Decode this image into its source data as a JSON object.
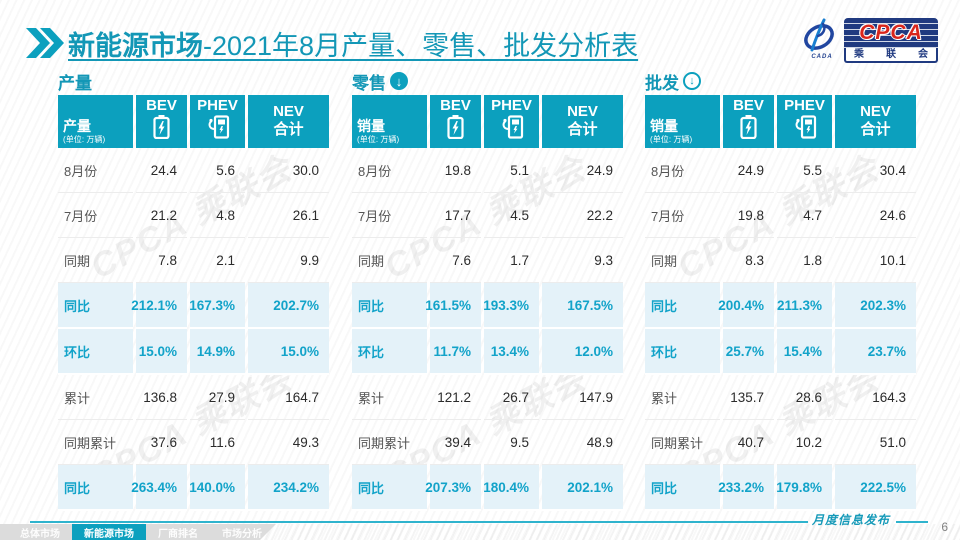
{
  "slide": {
    "title_bold": "新能源市场",
    "title_rest": "-2021年8月产量、零售、批发分析表",
    "accent_color": "#0CA0BE",
    "highlight_row_bg": "#E4F2F9",
    "logos": {
      "left_caption": "CADA",
      "badge_text": "CPCA",
      "badge_caption_chars": [
        "乘",
        "联",
        "会"
      ]
    }
  },
  "watermark": "CPCA 乘联会",
  "tables": [
    {
      "section_title": "产量",
      "arrow": "none",
      "header": {
        "measure": "产量",
        "unit": "(单位: 万辆)",
        "bev": "BEV",
        "phev": "PHEV",
        "nev_line1": "NEV",
        "nev_line2": "合计"
      },
      "rows": [
        {
          "label": "8月份",
          "values": [
            "24.4",
            "5.6",
            "30.0"
          ],
          "highlight": false
        },
        {
          "label": "7月份",
          "values": [
            "21.2",
            "4.8",
            "26.1"
          ],
          "highlight": false
        },
        {
          "label": "同期",
          "values": [
            "7.8",
            "2.1",
            "9.9"
          ],
          "highlight": false
        },
        {
          "label": "同比",
          "values": [
            "212.1%",
            "167.3%",
            "202.7%"
          ],
          "highlight": true
        },
        {
          "label": "环比",
          "values": [
            "15.0%",
            "14.9%",
            "15.0%"
          ],
          "highlight": true
        },
        {
          "label": "累计",
          "values": [
            "136.8",
            "27.9",
            "164.7"
          ],
          "highlight": false
        },
        {
          "label": "同期累计",
          "values": [
            "37.6",
            "11.6",
            "49.3"
          ],
          "highlight": false
        },
        {
          "label": "同比",
          "values": [
            "263.4%",
            "140.0%",
            "234.2%"
          ],
          "highlight": true
        }
      ]
    },
    {
      "section_title": "零售",
      "arrow": "solid",
      "header": {
        "measure": "销量",
        "unit": "(单位: 万辆)",
        "bev": "BEV",
        "phev": "PHEV",
        "nev_line1": "NEV",
        "nev_line2": "合计"
      },
      "rows": [
        {
          "label": "8月份",
          "values": [
            "19.8",
            "5.1",
            "24.9"
          ],
          "highlight": false
        },
        {
          "label": "7月份",
          "values": [
            "17.7",
            "4.5",
            "22.2"
          ],
          "highlight": false
        },
        {
          "label": "同期",
          "values": [
            "7.6",
            "1.7",
            "9.3"
          ],
          "highlight": false
        },
        {
          "label": "同比",
          "values": [
            "161.5%",
            "193.3%",
            "167.5%"
          ],
          "highlight": true
        },
        {
          "label": "环比",
          "values": [
            "11.7%",
            "13.4%",
            "12.0%"
          ],
          "highlight": true
        },
        {
          "label": "累计",
          "values": [
            "121.2",
            "26.7",
            "147.9"
          ],
          "highlight": false
        },
        {
          "label": "同期累计",
          "values": [
            "39.4",
            "9.5",
            "48.9"
          ],
          "highlight": false
        },
        {
          "label": "同比",
          "values": [
            "207.3%",
            "180.4%",
            "202.1%"
          ],
          "highlight": true
        }
      ]
    },
    {
      "section_title": "批发",
      "arrow": "ring",
      "header": {
        "measure": "销量",
        "unit": "(单位: 万辆)",
        "bev": "BEV",
        "phev": "PHEV",
        "nev_line1": "NEV",
        "nev_line2": "合计"
      },
      "rows": [
        {
          "label": "8月份",
          "values": [
            "24.9",
            "5.5",
            "30.4"
          ],
          "highlight": false
        },
        {
          "label": "7月份",
          "values": [
            "19.8",
            "4.7",
            "24.6"
          ],
          "highlight": false
        },
        {
          "label": "同期",
          "values": [
            "8.3",
            "1.8",
            "10.1"
          ],
          "highlight": false
        },
        {
          "label": "同比",
          "values": [
            "200.4%",
            "211.3%",
            "202.3%"
          ],
          "highlight": true
        },
        {
          "label": "环比",
          "values": [
            "25.7%",
            "15.4%",
            "23.7%"
          ],
          "highlight": true
        },
        {
          "label": "累计",
          "values": [
            "135.7",
            "28.6",
            "164.3"
          ],
          "highlight": false
        },
        {
          "label": "同期累计",
          "values": [
            "40.7",
            "10.2",
            "51.0"
          ],
          "highlight": false
        },
        {
          "label": "同比",
          "values": [
            "233.2%",
            "179.8%",
            "222.5%"
          ],
          "highlight": true
        }
      ]
    }
  ],
  "footer": {
    "tabs": [
      {
        "label": "总体市场",
        "active": false
      },
      {
        "label": "新能源市场",
        "active": true
      },
      {
        "label": "厂商排名",
        "active": false
      },
      {
        "label": "市场分析",
        "active": false
      }
    ],
    "publication_label": "月度信息发布",
    "page_number": "6",
    "arrow_glyph": "↓"
  }
}
